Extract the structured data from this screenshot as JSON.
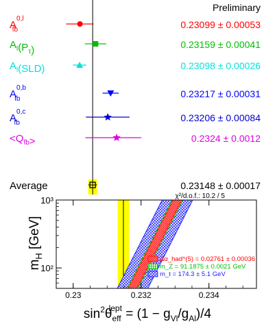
{
  "chart_data": [
    {
      "type": "scatter",
      "status": "Preliminary",
      "xlim": [
        0.2295,
        0.2334
      ],
      "central_band": {
        "value": 0.23148,
        "error": 0.00017,
        "color": "#ffff00"
      },
      "rows": [
        {
          "name": "A_fb^0,l",
          "base": "A",
          "sub": "fb",
          "sup": "0,l",
          "value": 0.23099,
          "error": 0.00053,
          "value_label": "0.23099 ± 0.00053",
          "color": "#ff0000",
          "marker": "circle"
        },
        {
          "name": "A_l(P_tau)",
          "base": "A",
          "sub": "l",
          "sup": "",
          "suffix": "(P",
          "suffix_sub": "τ",
          "suffix_end": ")",
          "value": 0.23159,
          "error": 0.00041,
          "value_label": "0.23159 ± 0.00041",
          "color": "#00c000",
          "marker": "square"
        },
        {
          "name": "A_l(SLD)",
          "base": "A",
          "sub": "l",
          "sup": "",
          "suffix": "(SLD)",
          "suffix_sub": "",
          "suffix_end": "",
          "value": 0.23098,
          "error": 0.00026,
          "value_label": "0.23098 ± 0.00026",
          "color": "#00e0e0",
          "marker": "triangle-up"
        },
        {
          "name": "A_fb^0,b",
          "base": "A",
          "sub": "fb",
          "sup": "0,b",
          "value": 0.23217,
          "error": 0.00031,
          "value_label": "0.23217 ± 0.00031",
          "color": "#0000ff",
          "marker": "triangle-down"
        },
        {
          "name": "A_fb^0,c",
          "base": "A",
          "sub": "fb",
          "sup": "0,c",
          "value": 0.23206,
          "error": 0.00084,
          "value_label": "0.23206 ± 0.00084",
          "color": "#0000d0",
          "marker": "star"
        },
        {
          "name": "<Q_fb>",
          "base": "<Q",
          "sub": "fb",
          "sup": "",
          "suffix": ">",
          "value": 0.2324,
          "error": 0.0012,
          "value_label": "0.2324 ± 0.0012",
          "color": "#e000e0",
          "marker": "star"
        }
      ],
      "average": {
        "name": "Average",
        "value": 0.23148,
        "error": 0.00017,
        "value_label": "0.23148 ± 0.00017",
        "chi2_label": "χ²/d.o.f.: 10.2 / 5",
        "color": "#000000",
        "marker": "open-square"
      }
    },
    {
      "type": "area",
      "xlabel": "sin²θ_eff^lept = (1 − g_Vl/g_Al)/4",
      "ylabel": "m_H  [GeV]",
      "xlim": [
        0.2295,
        0.2354
      ],
      "ylim": [
        50,
        1000
      ],
      "ylog": true,
      "xticks": [
        0.23,
        0.232,
        0.234
      ],
      "xtick_labels": [
        "0.23",
        "0.232",
        "0.234"
      ],
      "yticks": [
        100,
        1000
      ],
      "ytick_labels": [
        "10²",
        "10³"
      ],
      "band": {
        "x_low": 0.23131,
        "x_high": 0.23165,
        "color": "#ffff00"
      },
      "prediction": {
        "x_center_at_50": 0.23175,
        "x_center_at_1000": 0.23307,
        "half_width_red": 0.00013,
        "half_width_green": 0.00016,
        "half_width_blue": 0.00045
      },
      "legend": [
        {
          "label": "Δα_had^(5) = 0.02761 ± 0.00036",
          "color": "#ff0000"
        },
        {
          "label": "m_Z = 91.1875 ± 0.0021 GeV",
          "color": "#00c000"
        },
        {
          "label": "m_t = 174.3 ± 5.1 GeV",
          "color": "#2020ff"
        }
      ]
    }
  ]
}
